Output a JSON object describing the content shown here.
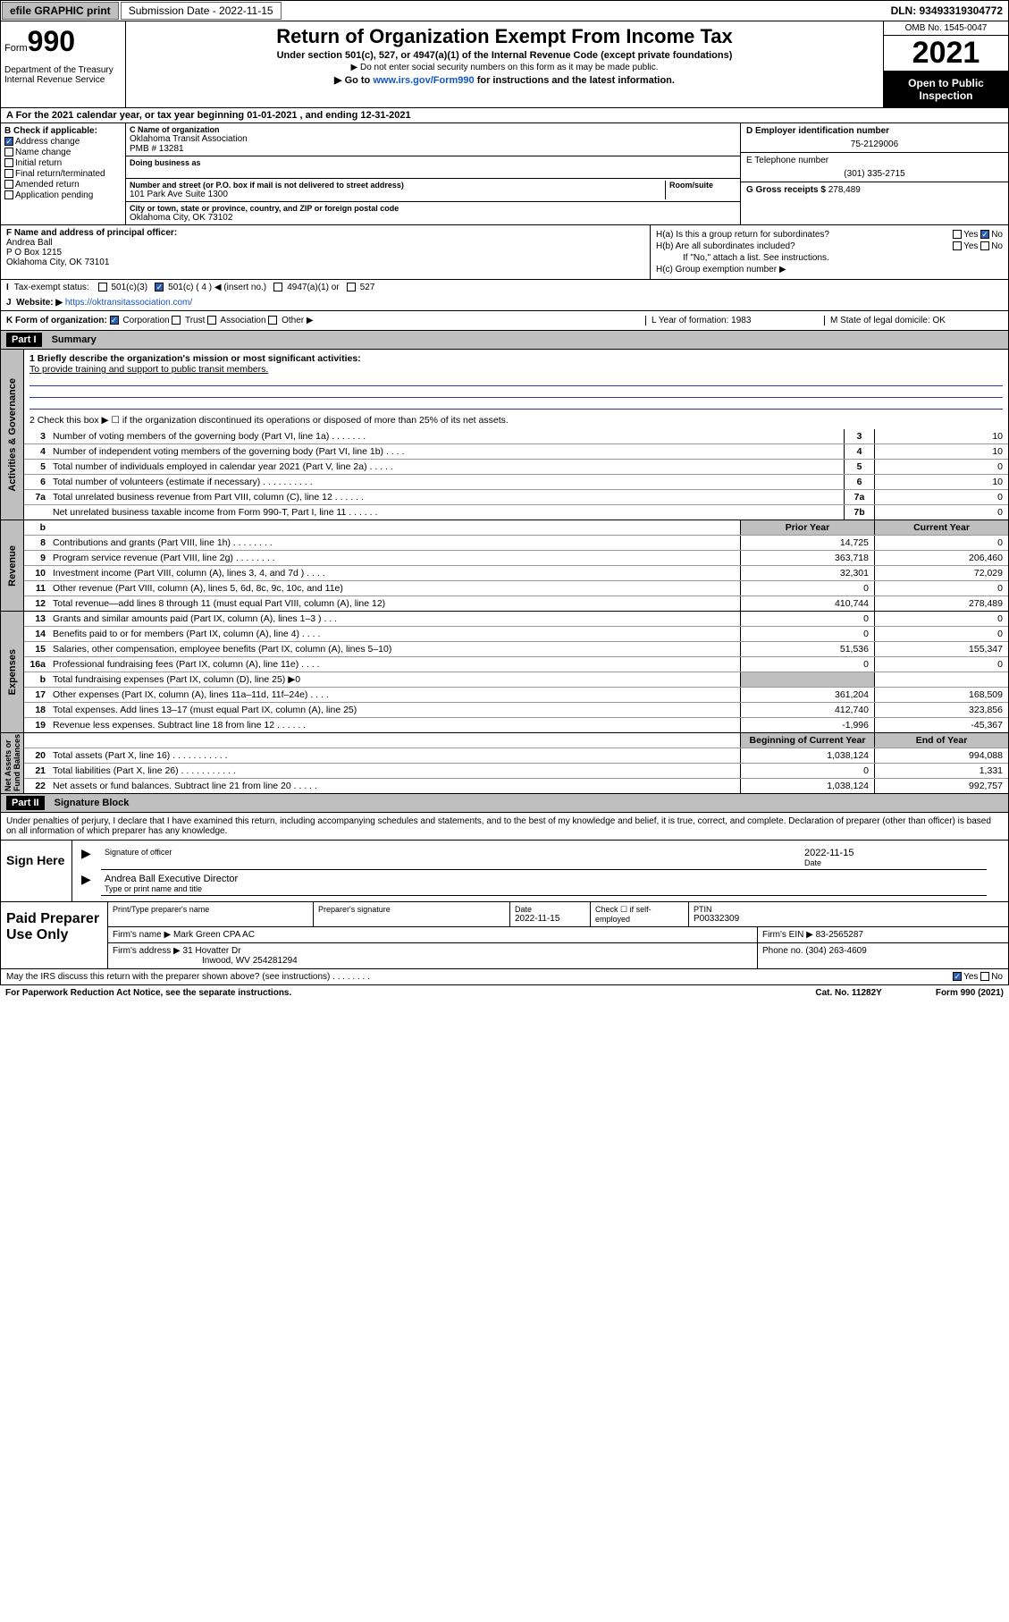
{
  "topbar": {
    "efile": "efile GRAPHIC print",
    "sub_label": "Submission Date - 2022-11-15",
    "dln": "DLN: 93493319304772"
  },
  "header": {
    "form_word": "Form",
    "form_no": "990",
    "dept": "Department of the Treasury\nInternal Revenue Service",
    "title": "Return of Organization Exempt From Income Tax",
    "sub": "Under section 501(c), 527, or 4947(a)(1) of the Internal Revenue Code (except private foundations)",
    "note1": "▶ Do not enter social security numbers on this form as it may be made public.",
    "note2_pre": "▶ Go to ",
    "note2_link": "www.irs.gov/Form990",
    "note2_post": " for instructions and the latest information.",
    "omb": "OMB No. 1545-0047",
    "year": "2021",
    "open_pub": "Open to Public Inspection"
  },
  "row_a": "A For the 2021 calendar year, or tax year beginning 01-01-2021    , and ending 12-31-2021",
  "b": {
    "label": "B Check if applicable:",
    "items": [
      "Address change",
      "Name change",
      "Initial return",
      "Final return/terminated",
      "Amended return",
      "Application pending"
    ],
    "checked": [
      true,
      false,
      false,
      false,
      false,
      false
    ]
  },
  "c": {
    "name_lbl": "C Name of organization",
    "name1": "Oklahoma Transit Association",
    "name2": "PMB # 13281",
    "dba_lbl": "Doing business as",
    "addr_lbl": "Number and street (or P.O. box if mail is not delivered to street address)",
    "room_lbl": "Room/suite",
    "addr": "101 Park Ave Suite 1300",
    "city_lbl": "City or town, state or province, country, and ZIP or foreign postal code",
    "city": "Oklahoma City, OK   73102"
  },
  "d": {
    "lbl": "D Employer identification number",
    "val": "75-2129006"
  },
  "e": {
    "lbl": "E Telephone number",
    "val": "(301) 335-2715"
  },
  "g": {
    "lbl": "G Gross receipts $",
    "val": "278,489"
  },
  "f": {
    "lbl": "F  Name and address of principal officer:",
    "name": "Andrea Ball",
    "addr1": "P O Box 1215",
    "addr2": "Oklahoma City, OK  73101"
  },
  "h": {
    "a": "H(a)  Is this a group return for subordinates?",
    "a_yes": "Yes",
    "a_no": "No",
    "a_checked": "no",
    "b": "H(b)  Are all subordinates included?",
    "b_yes": "Yes",
    "b_no": "No",
    "b_note": "If \"No,\" attach a list. See instructions.",
    "c": "H(c)  Group exemption number ▶"
  },
  "i": {
    "lbl": "Tax-exempt status:",
    "opts": [
      "501(c)(3)",
      "501(c) ( 4 ) ◀ (insert no.)",
      "4947(a)(1) or",
      "527"
    ],
    "checked": 1
  },
  "j": {
    "lbl": "J",
    "text": "Website: ▶",
    "url": "https://oktransitassociation.com/"
  },
  "k": {
    "lbl": "K Form of organization:",
    "opts": [
      "Corporation",
      "Trust",
      "Association",
      "Other ▶"
    ],
    "checked": 0,
    "l": "L Year of formation: 1983",
    "m": "M State of legal domicile: OK"
  },
  "part1": {
    "hdr": "Part I",
    "title": "Summary"
  },
  "summary_top": {
    "l1a": "1  Briefly describe the organization's mission or most significant activities:",
    "l1b": "To provide training and support to public transit members.",
    "l2": "2    Check this box ▶ ☐  if the organization discontinued its operations or disposed of more than 25% of its net assets."
  },
  "gov_rows": [
    {
      "n": "3",
      "t": "Number of voting members of the governing body (Part VI, line 1a)   .    .    .    .    .    .    .",
      "b": "3",
      "v": "10"
    },
    {
      "n": "4",
      "t": "Number of independent voting members of the governing body (Part VI, line 1b)   .    .    .    .",
      "b": "4",
      "v": "10"
    },
    {
      "n": "5",
      "t": "Total number of individuals employed in calendar year 2021 (Part V, line 2a)   .    .    .    .    .",
      "b": "5",
      "v": "0"
    },
    {
      "n": "6",
      "t": "Total number of volunteers (estimate if necessary)   .    .    .    .    .    .    .    .    .    .",
      "b": "6",
      "v": "10"
    },
    {
      "n": "7a",
      "t": "Total unrelated business revenue from Part VIII, column (C), line 12   .    .    .    .    .    .",
      "b": "7a",
      "v": "0"
    },
    {
      "n": "",
      "t": "Net unrelated business taxable income from Form 990-T, Part I, line 11   .    .    .    .    .    .",
      "b": "7b",
      "v": "0"
    }
  ],
  "col_hdr": {
    "b": "b",
    "prior": "Prior Year",
    "curr": "Current Year"
  },
  "rev_rows": [
    {
      "n": "8",
      "t": "Contributions and grants (Part VIII, line 1h)   .    .    .    .    .    .    .    .",
      "p": "14,725",
      "c": "0"
    },
    {
      "n": "9",
      "t": "Program service revenue (Part VIII, line 2g)   .    .    .    .    .    .    .    .",
      "p": "363,718",
      "c": "206,460"
    },
    {
      "n": "10",
      "t": "Investment income (Part VIII, column (A), lines 3, 4, and 7d )   .    .    .    .",
      "p": "32,301",
      "c": "72,029"
    },
    {
      "n": "11",
      "t": "Other revenue (Part VIII, column (A), lines 5, 6d, 8c, 9c, 10c, and 11e)",
      "p": "0",
      "c": "0"
    },
    {
      "n": "12",
      "t": "Total revenue—add lines 8 through 11 (must equal Part VIII, column (A), line 12)",
      "p": "410,744",
      "c": "278,489"
    }
  ],
  "exp_rows": [
    {
      "n": "13",
      "t": "Grants and similar amounts paid (Part IX, column (A), lines 1–3 )   .    .    .",
      "p": "0",
      "c": "0"
    },
    {
      "n": "14",
      "t": "Benefits paid to or for members (Part IX, column (A), line 4)   .    .    .    .",
      "p": "0",
      "c": "0"
    },
    {
      "n": "15",
      "t": "Salaries, other compensation, employee benefits (Part IX, column (A), lines 5–10)",
      "p": "51,536",
      "c": "155,347"
    },
    {
      "n": "16a",
      "t": "Professional fundraising fees (Part IX, column (A), line 11e)   .    .    .    .",
      "p": "0",
      "c": "0"
    },
    {
      "n": "b",
      "t": "Total fundraising expenses (Part IX, column (D), line 25) ▶0",
      "p": "",
      "c": "",
      "shade": true
    },
    {
      "n": "17",
      "t": "Other expenses (Part IX, column (A), lines 11a–11d, 11f–24e)   .    .    .    .",
      "p": "361,204",
      "c": "168,509"
    },
    {
      "n": "18",
      "t": "Total expenses. Add lines 13–17 (must equal Part IX, column (A), line 25)",
      "p": "412,740",
      "c": "323,856"
    },
    {
      "n": "19",
      "t": "Revenue less expenses. Subtract line 18 from line 12   .    .    .    .    .    .",
      "p": "-1,996",
      "c": "-45,367"
    }
  ],
  "na_hdr": {
    "prior": "Beginning of Current Year",
    "curr": "End of Year"
  },
  "na_rows": [
    {
      "n": "20",
      "t": "Total assets (Part X, line 16)   .    .    .    .    .    .    .    .    .    .    .",
      "p": "1,038,124",
      "c": "994,088"
    },
    {
      "n": "21",
      "t": "Total liabilities (Part X, line 26)   .    .    .    .    .    .    .    .    .    .    .",
      "p": "0",
      "c": "1,331"
    },
    {
      "n": "22",
      "t": "Net assets or fund balances. Subtract line 21 from line 20   .    .    .    .    .",
      "p": "1,038,124",
      "c": "992,757"
    }
  ],
  "side": {
    "gov": "Activities & Governance",
    "rev": "Revenue",
    "exp": "Expenses",
    "na": "Net Assets or\nFund Balances"
  },
  "part2": {
    "hdr": "Part II",
    "title": "Signature Block"
  },
  "sig": {
    "decl": "Under penalties of perjury, I declare that I have examined this return, including accompanying schedules and statements, and to the best of my knowledge and belief, it is true, correct, and complete. Declaration of preparer (other than officer) is based on all information of which preparer has any knowledge.",
    "here": "Sign Here",
    "sig_of": "Signature of officer",
    "date_lbl": "Date",
    "date": "2022-11-15",
    "name": "Andrea Ball  Executive Director",
    "type_lbl": "Type or print name and title"
  },
  "prep": {
    "lbl": "Paid Preparer Use Only",
    "h1": "Print/Type preparer's name",
    "h2": "Preparer's signature",
    "h3": "Date",
    "h3v": "2022-11-15",
    "h4": "Check ☐ if self-employed",
    "h5": "PTIN",
    "h5v": "P00332309",
    "firm_name_lbl": "Firm's name      ▶",
    "firm_name": "Mark Green CPA AC",
    "firm_ein_lbl": "Firm's EIN ▶",
    "firm_ein": "83-2565287",
    "firm_addr_lbl": "Firm's address ▶",
    "firm_addr1": "31 Hovatter Dr",
    "firm_addr2": "Inwood, WV  254281294",
    "phone_lbl": "Phone no.",
    "phone": "(304) 263-4609"
  },
  "foot": {
    "irs": "May the IRS discuss this return with the preparer shown above? (see instructions)   .    .    .    .    .    .    .    .",
    "yes": "Yes",
    "no": "No",
    "pra": "For Paperwork Reduction Act Notice, see the separate instructions.",
    "cat": "Cat. No. 11282Y",
    "form": "Form 990 (2021)"
  }
}
